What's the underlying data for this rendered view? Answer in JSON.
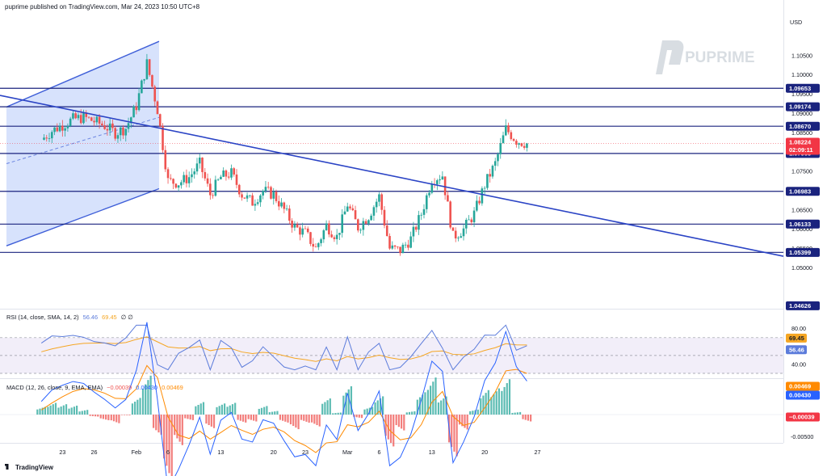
{
  "header": {
    "published": "puprime published on TradingView.com, Mar 24, 2023 10:50 UTC+8"
  },
  "watermark": {
    "text": "PUPRIME"
  },
  "footer": {
    "brand": "TradingView"
  },
  "colors": {
    "up": "#26a69a",
    "down": "#ef5350",
    "level": "#1a237e",
    "trend": "#2b44c5",
    "channel_fill": "#c9d8fb",
    "rsi": "#5c7cdb",
    "rsi_ma": "#f5a623",
    "macd": "#2962ff",
    "signal": "#ff8a00",
    "price_tag": "#f23645"
  },
  "chart_data": {
    "type": "candlestick",
    "symbol_currency": "USD",
    "x_ticks": [
      "23",
      "26",
      "Feb",
      "6",
      "13",
      "20",
      "23",
      "Mar",
      "6",
      "13",
      "20",
      "27"
    ],
    "y_ticks": [
      "1.10500",
      "1.10000",
      "1.09500",
      "1.09000",
      "1.08500",
      "1.07500",
      "1.06500",
      "1.06000",
      "1.05500",
      "1.05000"
    ],
    "y_range": [
      1.0435,
      1.1105
    ],
    "levels": [
      {
        "value": 1.09653,
        "label": "1.09653"
      },
      {
        "value": 1.09174,
        "label": "1.09174"
      },
      {
        "value": 1.0867,
        "label": "1.08670"
      },
      {
        "value": 1.07965,
        "label": "1.07965"
      },
      {
        "value": 1.06983,
        "label": "1.06983"
      },
      {
        "value": 1.06133,
        "label": "1.06133"
      },
      {
        "value": 1.05399,
        "label": "1.05399"
      }
    ],
    "current_price": {
      "value": "1.08224",
      "countdown": "02:09:11"
    },
    "low_marker": "1.04626",
    "close_path": [
      [
        "Jan 19",
        1.0832
      ],
      [
        "Jan 20",
        1.0855
      ],
      [
        "Jan 23",
        1.087
      ],
      [
        "Jan 24",
        1.0885
      ],
      [
        "Jan 25",
        1.089
      ],
      [
        "Jan 26",
        1.088
      ],
      [
        "Jan 27",
        1.0868
      ],
      [
        "Jan 30",
        1.085
      ],
      [
        "Jan 31",
        1.0862
      ],
      [
        "Feb 1",
        1.092
      ],
      [
        "Feb 2",
        1.103
      ],
      [
        "Feb 3",
        1.091
      ],
      [
        "Feb 6",
        1.0725
      ],
      [
        "Feb 7",
        1.072
      ],
      [
        "Feb 8",
        1.0735
      ],
      [
        "Feb 9",
        1.077
      ],
      [
        "Feb 10",
        1.069
      ],
      [
        "Feb 13",
        1.0735
      ],
      [
        "Feb 14",
        1.0745
      ],
      [
        "Feb 15",
        1.069
      ],
      [
        "Feb 16",
        1.067
      ],
      [
        "Feb 17",
        1.07
      ],
      [
        "Feb 20",
        1.069
      ],
      [
        "Feb 21",
        1.065
      ],
      [
        "Feb 22",
        1.0605
      ],
      [
        "Feb 23",
        1.059
      ],
      [
        "Feb 24",
        1.055
      ],
      [
        "Feb 27",
        1.061
      ],
      [
        "Feb 28",
        1.058
      ],
      [
        "Mar 1",
        1.0665
      ],
      [
        "Mar 2",
        1.0605
      ],
      [
        "Mar 3",
        1.0635
      ],
      [
        "Mar 6",
        1.0685
      ],
      [
        "Mar 7",
        1.055
      ],
      [
        "Mar 8",
        1.0545
      ],
      [
        "Mar 9",
        1.0575
      ],
      [
        "Mar 10",
        1.064
      ],
      [
        "Mar 13",
        1.073
      ],
      [
        "Mar 14",
        1.074
      ],
      [
        "Mar 15",
        1.058
      ],
      [
        "Mar 16",
        1.06
      ],
      [
        "Mar 17",
        1.064
      ],
      [
        "Mar 20",
        1.0715
      ],
      [
        "Mar 21",
        1.077
      ],
      [
        "Mar 22",
        1.086
      ],
      [
        "Mar 23",
        1.083
      ],
      [
        "Mar 24",
        1.0822
      ]
    ],
    "trendlines": [
      {
        "name": "descending",
        "from": [
          "Jan 16",
          1.0947
        ],
        "to": [
          "Mar 27",
          1.053
        ]
      }
    ],
    "channel": {
      "from": "Jan 16",
      "to": "Feb 3",
      "upper": [
        1.0917,
        1.1087
      ],
      "mid": [
        1.077,
        1.089
      ],
      "lower": [
        1.0557,
        1.0705
      ]
    }
  },
  "rsi": {
    "legend_text": "RSI (14, close, SMA, 14, 2)",
    "rsi_value": "56.46",
    "ma_value": "69.45",
    "dash": "∅ ∅",
    "ticks": [
      "80.00",
      "40.00"
    ],
    "range": [
      30,
      87
    ],
    "upper_band": 70,
    "lower_band": 30
  },
  "macd": {
    "legend_text": "MACD (12, 26, close, 9, EMA, EMA)",
    "hist_value": "−0.00039",
    "macd_value": "0.00430",
    "signal_value": "0.00469",
    "ticks": [
      "-0.00500"
    ]
  }
}
